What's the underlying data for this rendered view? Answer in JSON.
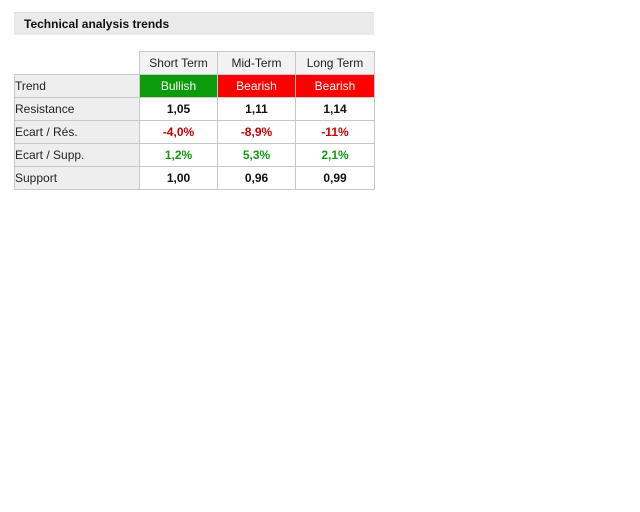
{
  "widget": {
    "title": "Technical analysis trends"
  },
  "columns": [
    "Short Term",
    "Mid-Term",
    "Long Term"
  ],
  "trend": {
    "label": "Trend",
    "values": [
      "Bullish",
      "Bearish",
      "Bearish"
    ]
  },
  "rows": [
    {
      "label": "Resistance",
      "values": [
        "1,05",
        "1,11",
        "1,14"
      ]
    },
    {
      "label": "Ecart / Rés.",
      "values": [
        "-4,0%",
        "-8,9%",
        "-11%"
      ]
    },
    {
      "label": "Ecart / Supp.",
      "values": [
        "1,2%",
        "5,3%",
        "2,1%"
      ]
    },
    {
      "label": "Support",
      "values": [
        "1,00",
        "0,96",
        "0,99"
      ]
    }
  ],
  "colors": {
    "bullish": "#0a9c0a",
    "bearish": "#ff0000",
    "negative_text": "#cc0000",
    "positive_text": "#119911",
    "header_bg": "#eaeaea"
  }
}
